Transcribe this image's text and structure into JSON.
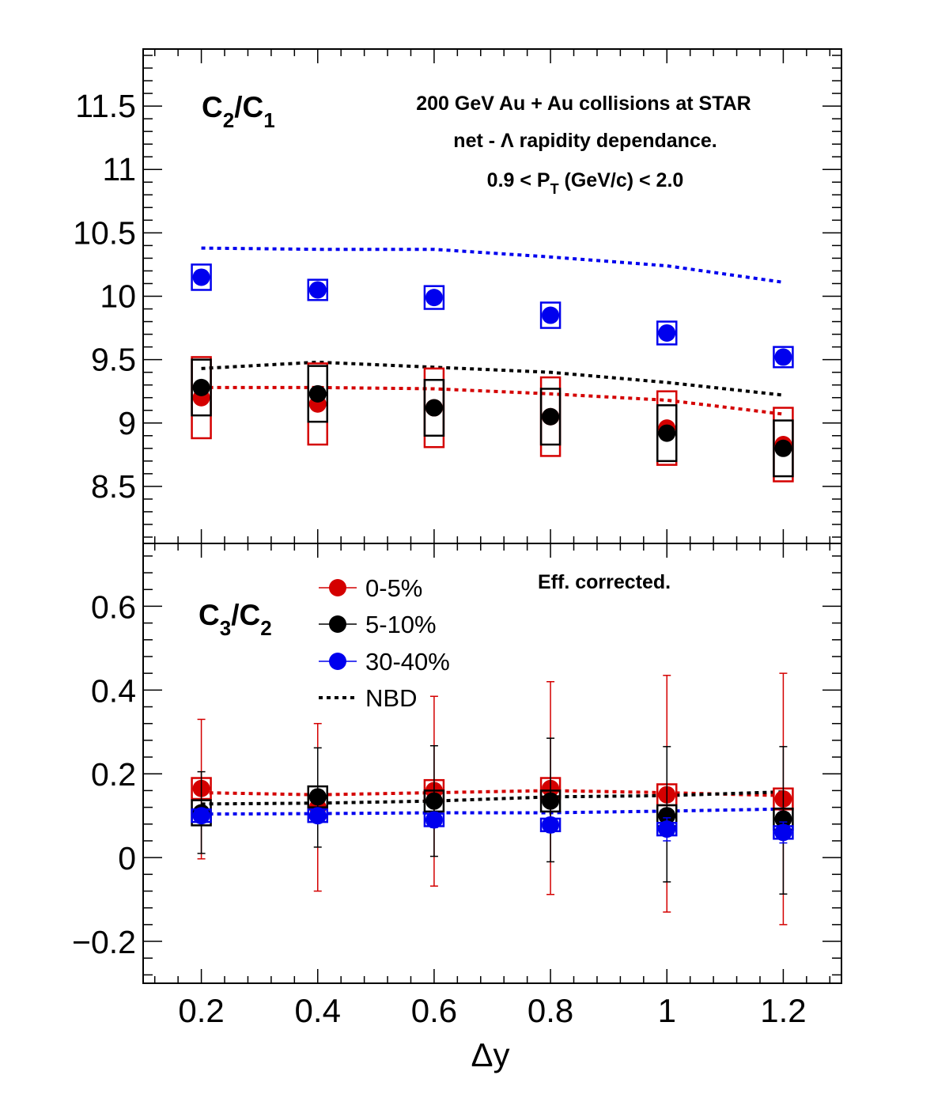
{
  "chart_data": [
    {
      "type": "scatter",
      "panel": "top",
      "ylabel": "C2/C1",
      "ylabel_parts": {
        "main1": "C",
        "sub1": "2",
        "sep": "/",
        "main2": "C",
        "sub2": "1"
      },
      "title_lines": [
        "200 GeV Au + Au collisions at STAR",
        "net -  Λ rapidity dependance."
      ],
      "title_pt": {
        "pre": "0.9 < P",
        "sub": "T",
        "post": " (GeV/c) < 2.0"
      },
      "xlim": [
        0.1,
        1.3
      ],
      "ylim": [
        8.05,
        11.95
      ],
      "yticks": [
        8.5,
        9,
        9.5,
        10,
        10.5,
        11,
        11.5
      ],
      "ytick_labels": [
        "8.5",
        "9",
        "9.5",
        "10",
        "10.5",
        "11",
        "11.5"
      ],
      "x": [
        0.2,
        0.4,
        0.6,
        0.8,
        1.0,
        1.2
      ],
      "series": [
        {
          "name": "0-5%",
          "color": "#d40000",
          "values": [
            9.2,
            9.15,
            9.12,
            9.05,
            8.96,
            8.83
          ],
          "sys": [
            0.32,
            0.32,
            0.31,
            0.31,
            0.29,
            0.29
          ],
          "stat": [
            0.02,
            0.02,
            0.02,
            0.02,
            0.02,
            0.02
          ]
        },
        {
          "name": "5-10%",
          "color": "#000000",
          "values": [
            9.28,
            9.23,
            9.12,
            9.05,
            8.92,
            8.8
          ],
          "sys": [
            0.22,
            0.22,
            0.22,
            0.22,
            0.22,
            0.22
          ],
          "stat": [
            0.02,
            0.02,
            0.02,
            0.02,
            0.02,
            0.02
          ]
        },
        {
          "name": "30-40%",
          "color": "#0000ee",
          "values": [
            10.15,
            10.05,
            9.99,
            9.85,
            9.71,
            9.52
          ],
          "sys": [
            0.1,
            0.08,
            0.09,
            0.1,
            0.09,
            0.08
          ],
          "stat": [
            0.06,
            0.03,
            0.03,
            0.03,
            0.03,
            0.03
          ]
        }
      ],
      "nbd": [
        {
          "color": "#d40000",
          "x": [
            0.2,
            0.4,
            0.6,
            0.8,
            1.0,
            1.2
          ],
          "y": [
            9.28,
            9.28,
            9.27,
            9.23,
            9.18,
            9.07
          ]
        },
        {
          "color": "#000000",
          "x": [
            0.2,
            0.4,
            0.6,
            0.8,
            1.0,
            1.2
          ],
          "y": [
            9.43,
            9.48,
            9.44,
            9.4,
            9.32,
            9.22
          ]
        },
        {
          "color": "#0000ee",
          "x": [
            0.2,
            0.4,
            0.6,
            0.8,
            1.0,
            1.2
          ],
          "y": [
            10.38,
            10.37,
            10.37,
            10.31,
            10.24,
            10.11
          ]
        }
      ]
    },
    {
      "type": "scatter",
      "panel": "bottom",
      "ylabel": "C3/C2",
      "ylabel_parts": {
        "main1": "C",
        "sub1": "3",
        "sep": "/",
        "main2": "C",
        "sub2": "2"
      },
      "annotation": "Eff. corrected.",
      "xlabel": "Δy",
      "xlim": [
        0.1,
        1.3
      ],
      "ylim": [
        -0.3,
        0.75
      ],
      "xticks": [
        0.2,
        0.4,
        0.6,
        0.8,
        1.0,
        1.2
      ],
      "xtick_labels": [
        "0.2",
        "0.4",
        "0.6",
        "0.8",
        "1",
        "1.2"
      ],
      "yticks": [
        -0.2,
        0,
        0.2,
        0.4,
        0.6
      ],
      "ytick_labels": [
        "−0.2",
        "0",
        "0.2",
        "0.4",
        "0.6"
      ],
      "x": [
        0.2,
        0.4,
        0.6,
        0.8,
        1.0,
        1.2
      ],
      "legend": {
        "placement": "top-center",
        "entries": [
          {
            "label": "0-5%",
            "color": "#d40000",
            "kind": "marker"
          },
          {
            "label": "5-10%",
            "color": "#000000",
            "kind": "marker"
          },
          {
            "label": "30-40%",
            "color": "#0000ee",
            "kind": "marker"
          },
          {
            "label": "NBD",
            "color": "#000000",
            "kind": "dashed"
          }
        ]
      },
      "series": [
        {
          "name": "0-5%",
          "color": "#d40000",
          "values": [
            0.165,
            0.12,
            0.16,
            0.165,
            0.15,
            0.14
          ],
          "sys": [
            0.025,
            0.025,
            0.025,
            0.025,
            0.025,
            0.025
          ],
          "err_lo": [
            -0.003,
            -0.08,
            -0.068,
            -0.088,
            -0.13,
            -0.16
          ],
          "err_hi": [
            0.33,
            0.32,
            0.385,
            0.42,
            0.435,
            0.44
          ]
        },
        {
          "name": "5-10%",
          "color": "#000000",
          "values": [
            0.107,
            0.145,
            0.135,
            0.135,
            0.1,
            0.092
          ],
          "sys": [
            0.03,
            0.025,
            0.025,
            0.025,
            0.025,
            0.025
          ],
          "err_lo": [
            0.01,
            0.025,
            0.003,
            -0.01,
            -0.058,
            -0.087
          ],
          "err_hi": [
            0.205,
            0.262,
            0.267,
            0.285,
            0.265,
            0.265
          ]
        },
        {
          "name": "30-40%",
          "color": "#0000ee",
          "values": [
            0.1,
            0.1,
            0.09,
            0.078,
            0.068,
            0.06
          ],
          "sys": [
            0.015,
            0.015,
            0.015,
            0.015,
            0.015,
            0.015
          ],
          "err_lo": [
            0.085,
            0.085,
            0.072,
            0.06,
            0.04,
            0.035
          ],
          "err_hi": [
            0.115,
            0.112,
            0.108,
            0.095,
            0.095,
            0.085
          ]
        }
      ],
      "nbd": [
        {
          "color": "#d40000",
          "x": [
            0.2,
            0.4,
            0.6,
            0.8,
            1.0,
            1.2
          ],
          "y": [
            0.155,
            0.15,
            0.155,
            0.16,
            0.155,
            0.148
          ]
        },
        {
          "color": "#000000",
          "x": [
            0.2,
            0.4,
            0.6,
            0.8,
            1.0,
            1.2
          ],
          "y": [
            0.128,
            0.13,
            0.135,
            0.145,
            0.148,
            0.157
          ]
        },
        {
          "color": "#0000ee",
          "x": [
            0.2,
            0.4,
            0.6,
            0.8,
            1.0,
            1.2
          ],
          "y": [
            0.104,
            0.105,
            0.107,
            0.107,
            0.111,
            0.116
          ]
        }
      ]
    }
  ]
}
